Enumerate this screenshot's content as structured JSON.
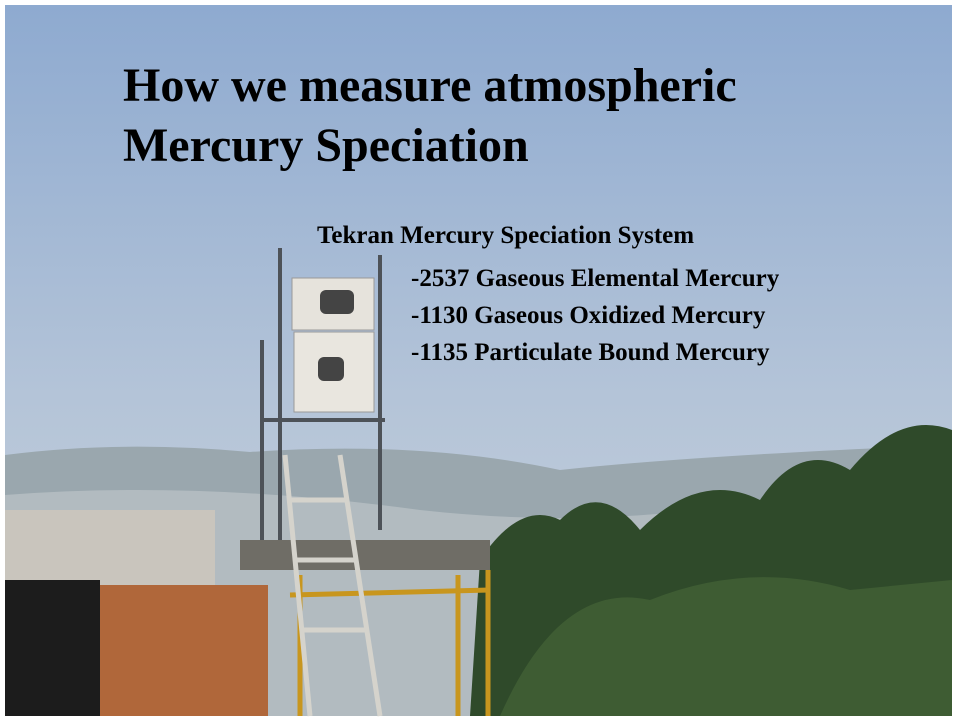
{
  "slide": {
    "title": "How we measure atmospheric Mercury Speciation",
    "subtitle": "Tekran Mercury Speciation System",
    "items": [
      "-2537 Gaseous Elemental Mercury",
      "-1130 Gaseous Oxidized Mercury",
      "-1135 Particulate Bound Mercury"
    ]
  }
}
